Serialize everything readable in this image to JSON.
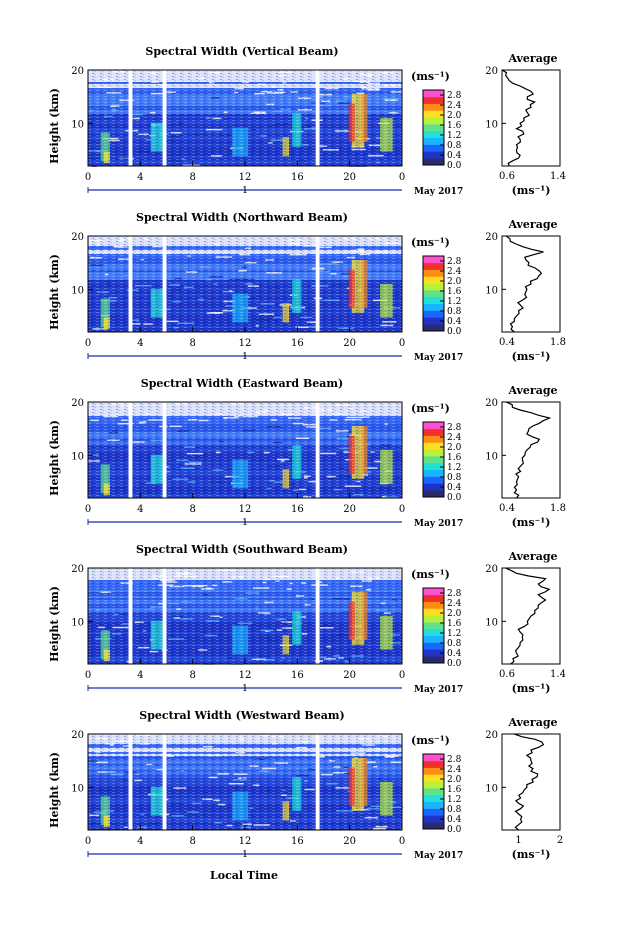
{
  "chart_data": {
    "type": "heatmap",
    "colorbar": {
      "unit": "(ms⁻¹)",
      "ticks": [
        "2.8",
        "2.4",
        "2.0",
        "1.6",
        "1.2",
        "0.8",
        "0.4",
        "0.0"
      ],
      "range": [
        0.0,
        3.0
      ],
      "colors": [
        "#2a2a6e",
        "#1f33c7",
        "#1a66ff",
        "#1ab3ff",
        "#22e0d8",
        "#5fe28a",
        "#b8f03a",
        "#ffe020",
        "#ff8c14",
        "#f0302a",
        "#ff50d0"
      ]
    },
    "x_axis": {
      "label": "Local Time",
      "ticks": [
        "0",
        "4",
        "8",
        "12",
        "16",
        "20",
        "0"
      ],
      "range": [
        0,
        24
      ],
      "date_tick": "1",
      "date_label": "May 2017"
    },
    "y_axis": {
      "label": "Height (km)",
      "ticks": [
        "10",
        "20"
      ],
      "range": [
        2,
        20
      ]
    },
    "average_axis": {
      "title": "Average",
      "unit": "(ms⁻¹)",
      "y_ticks": [
        "10",
        "20"
      ]
    },
    "data_gaps_hours": [
      [
        3.1,
        3.4
      ],
      [
        5.7,
        6.0
      ],
      [
        17.4,
        17.7
      ]
    ],
    "panels": [
      {
        "title": "Spectral Width (Vertical Beam)",
        "avg_xlim": [
          0.6,
          1.4
        ],
        "avg_ticks": [
          "0.6",
          "1.4"
        ],
        "avg_profile": {
          "height_km": [
            2,
            3,
            4,
            5,
            6,
            7,
            8,
            9,
            10,
            11,
            12,
            13,
            14,
            15,
            16,
            17,
            18,
            19,
            20
          ],
          "value": [
            0.7,
            0.75,
            0.85,
            0.8,
            0.8,
            0.85,
            0.9,
            0.8,
            0.85,
            0.9,
            0.95,
            1.0,
            1.05,
            0.95,
            1.0,
            0.85,
            0.7,
            0.65,
            0.6
          ]
        }
      },
      {
        "title": "Spectral Width (Northward Beam)",
        "avg_xlim": [
          0.4,
          1.8
        ],
        "avg_ticks": [
          "0.4",
          "1.8"
        ],
        "avg_profile": {
          "height_km": [
            2,
            3,
            4,
            5,
            6,
            7,
            8,
            9,
            10,
            11,
            12,
            13,
            14,
            15,
            16,
            17,
            18,
            19,
            20
          ],
          "value": [
            0.7,
            0.65,
            0.7,
            0.75,
            0.8,
            0.85,
            0.9,
            0.95,
            1.0,
            1.1,
            1.25,
            1.35,
            1.2,
            1.05,
            0.95,
            1.4,
            0.9,
            0.6,
            0.5
          ]
        }
      },
      {
        "title": "Spectral Width (Eastward Beam)",
        "avg_xlim": [
          0.4,
          1.8
        ],
        "avg_ticks": [
          "0.4",
          "1.8"
        ],
        "avg_profile": {
          "height_km": [
            2,
            3,
            4,
            5,
            6,
            7,
            8,
            9,
            10,
            11,
            12,
            13,
            14,
            15,
            16,
            17,
            18,
            19,
            20
          ],
          "value": [
            0.75,
            0.7,
            0.7,
            0.75,
            0.8,
            0.85,
            0.85,
            0.9,
            0.95,
            1.0,
            1.1,
            1.3,
            1.0,
            1.05,
            1.3,
            1.55,
            1.1,
            0.65,
            0.5
          ]
        }
      },
      {
        "title": "Spectral Width (Southward Beam)",
        "avg_xlim": [
          0.6,
          1.4
        ],
        "avg_ticks": [
          "0.6",
          "1.4"
        ],
        "avg_profile": {
          "height_km": [
            2,
            3,
            4,
            5,
            6,
            7,
            8,
            9,
            10,
            11,
            12,
            13,
            14,
            15,
            16,
            17,
            18,
            19,
            20
          ],
          "value": [
            0.72,
            0.75,
            0.8,
            0.82,
            0.85,
            0.88,
            0.85,
            0.9,
            0.95,
            1.0,
            1.05,
            1.1,
            1.2,
            1.1,
            1.25,
            1.1,
            1.2,
            0.8,
            0.65
          ]
        }
      },
      {
        "title": "Spectral Width (Westward Beam)",
        "avg_xlim": [
          0.6,
          2.0
        ],
        "avg_ticks": [
          "1",
          "2"
        ],
        "avg_profile": {
          "height_km": [
            2,
            3,
            4,
            5,
            6,
            7,
            8,
            9,
            10,
            11,
            12,
            13,
            14,
            15,
            16,
            17,
            18,
            19,
            20
          ],
          "value": [
            1.0,
            1.0,
            1.05,
            1.0,
            1.05,
            1.0,
            1.05,
            1.1,
            1.2,
            1.35,
            1.45,
            1.3,
            1.25,
            1.3,
            1.2,
            1.3,
            1.6,
            1.4,
            0.9
          ]
        }
      }
    ]
  }
}
